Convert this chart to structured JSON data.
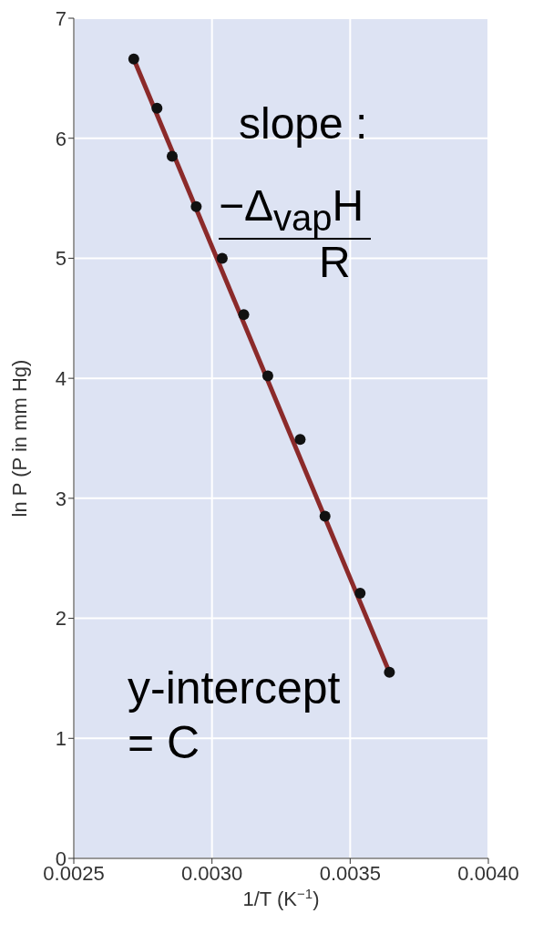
{
  "chart_data": {
    "type": "scatter",
    "xlabel": "1/T (K$^{−1}$)",
    "ylabel": "ln P (P in mm Hg)",
    "series": [
      {
        "color": "#111111",
        "marker": "circle",
        "x": [
          0.002717,
          0.002801,
          0.002856,
          0.002943,
          0.003037,
          0.003115,
          0.003202,
          0.003319,
          0.003409,
          0.003536,
          0.003642
        ],
        "values": [
          6.66,
          6.25,
          5.85,
          5.43,
          5.0,
          4.53,
          4.02,
          3.49,
          2.85,
          2.21,
          1.55
        ]
      },
      {
        "type": "line",
        "marker": "none",
        "color": "#8b2a2a",
        "x": [
          0.002717,
          0.003642
        ],
        "values": [
          6.66,
          1.55
        ]
      }
    ],
    "xlim": [
      0.0025,
      0.004
    ],
    "xticks": [
      0.0025,
      {
        "value": 0.003,
        "label": "0.0030"
      },
      0.0035,
      {
        "value": 0.004,
        "label": "0.0040"
      }
    ],
    "ylim": [
      0,
      7
    ],
    "yticks": [
      0,
      1,
      2,
      3,
      4,
      5,
      6,
      7
    ],
    "grid": true,
    "annotations": [
      "slope :",
      "−Δ$_{vap}$H",
      "R",
      "y-intercept\n= C"
    ]
  }
}
